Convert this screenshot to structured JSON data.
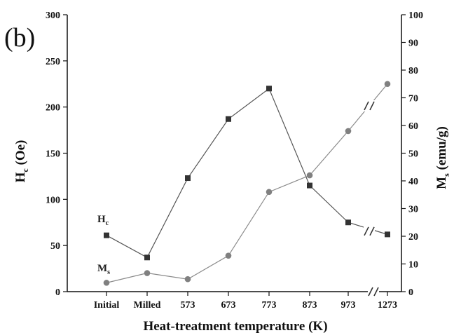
{
  "panel_label": "(b)",
  "chart_data": {
    "type": "line",
    "xlabel": "Heat-treatment temperature (K)",
    "categories": [
      "Initial",
      "Milled",
      "573",
      "673",
      "773",
      "873",
      "973",
      "1273"
    ],
    "axis_break_between": [
      "973",
      "1273"
    ],
    "y_left": {
      "label_main": "H",
      "label_sub": "c",
      "label_rest": " (Oe)",
      "ylim": [
        0,
        300
      ],
      "ticks": [
        0,
        50,
        100,
        150,
        200,
        250,
        300
      ]
    },
    "y_right": {
      "label_main": "M",
      "label_sub": "s",
      "label_rest": " (emu/g)",
      "ylim": [
        0,
        100
      ],
      "ticks": [
        0,
        10,
        20,
        30,
        40,
        50,
        60,
        70,
        80,
        90,
        100
      ]
    },
    "grid": false,
    "series": [
      {
        "name_main": "H",
        "name_sub": "c",
        "axis": "left",
        "marker": "square",
        "color": "#333333",
        "line_color": "#555555",
        "values": [
          61,
          37,
          123,
          187,
          220,
          115,
          75,
          62
        ]
      },
      {
        "name_main": "M",
        "name_sub": "s",
        "axis": "right",
        "marker": "circle",
        "color": "#808080",
        "line_color": "#8a8a8a",
        "values": [
          3.2,
          6.7,
          4.5,
          13,
          36,
          42,
          58,
          75
        ]
      }
    ]
  }
}
